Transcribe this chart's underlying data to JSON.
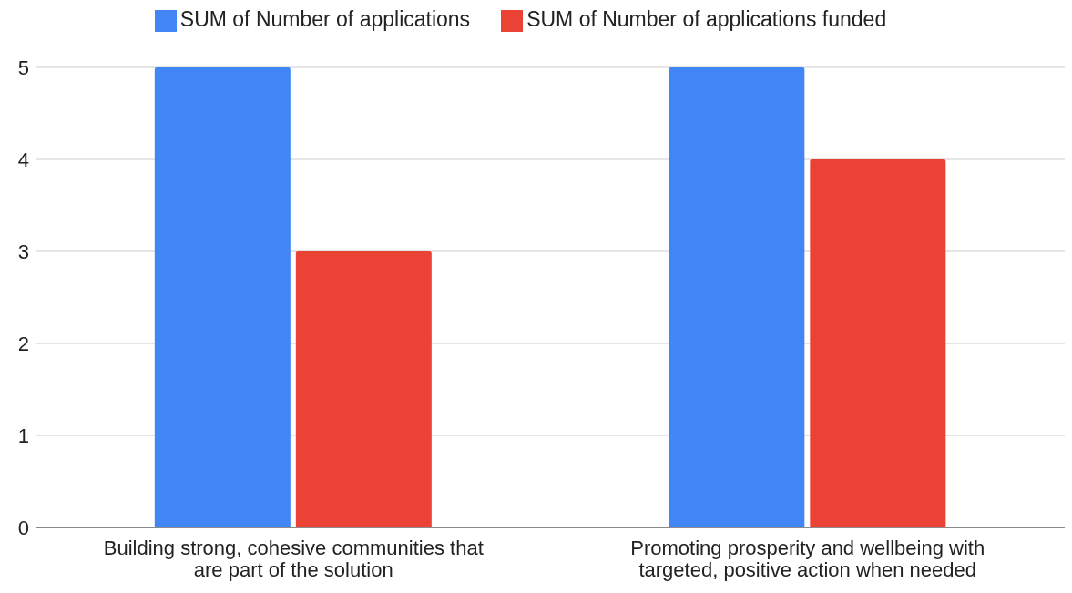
{
  "chart_data": {
    "type": "bar",
    "categories": [
      "Building strong, cohesive communities that are part of the solution",
      "Promoting prosperity and wellbeing with targeted, positive action when needed"
    ],
    "series": [
      {
        "name": "SUM of Number of applications",
        "color": "#4285f4",
        "values": [
          5,
          5
        ]
      },
      {
        "name": "SUM of Number of applications funded",
        "color": "#ea4335",
        "values": [
          3,
          4
        ]
      }
    ],
    "ylim": [
      0,
      5
    ],
    "yticks": [
      0,
      1,
      2,
      3,
      4,
      5
    ],
    "grid": "y",
    "legend": "top"
  }
}
